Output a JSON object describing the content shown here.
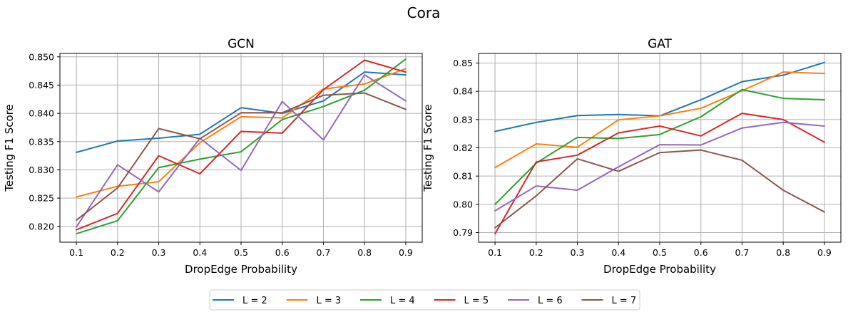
{
  "figure": {
    "suptitle": "Cora"
  },
  "chart_data": [
    {
      "type": "line",
      "title": "GCN",
      "xlabel": "DropEdge Probability",
      "ylabel": "Testing F1 Score",
      "x": [
        0.1,
        0.2,
        0.3,
        0.4,
        0.5,
        0.6,
        0.7,
        0.8,
        0.9
      ],
      "xticks": [
        "0.1",
        "0.2",
        "0.3",
        "0.4",
        "0.5",
        "0.6",
        "0.7",
        "0.8",
        "0.9"
      ],
      "xlim": [
        0.06,
        0.94
      ],
      "ylim": [
        0.8172,
        0.8506
      ],
      "yticks": [
        "0.820",
        "0.825",
        "0.830",
        "0.835",
        "0.840",
        "0.845",
        "0.850"
      ],
      "ytick_values": [
        0.82,
        0.825,
        0.83,
        0.835,
        0.84,
        0.845,
        0.85
      ],
      "grid": true,
      "series": [
        {
          "name": "L = 2",
          "color": "#1f77b4",
          "values": [
            0.8331,
            0.8351,
            0.8356,
            0.8363,
            0.841,
            0.84,
            0.8422,
            0.8473,
            0.8468
          ]
        },
        {
          "name": "L = 3",
          "color": "#ff7f0e",
          "values": [
            0.8252,
            0.8271,
            0.8279,
            0.8348,
            0.8394,
            0.8392,
            0.8443,
            0.8452,
            0.8479
          ]
        },
        {
          "name": "L = 4",
          "color": "#2ca02c",
          "values": [
            0.8187,
            0.821,
            0.8304,
            0.8319,
            0.8332,
            0.8389,
            0.8412,
            0.8441,
            0.8496
          ]
        },
        {
          "name": "L = 5",
          "color": "#d62728",
          "values": [
            0.8194,
            0.8223,
            0.8325,
            0.8293,
            0.8368,
            0.8365,
            0.8442,
            0.8494,
            0.8473
          ]
        },
        {
          "name": "L = 6",
          "color": "#9467bd",
          "values": [
            0.8199,
            0.8309,
            0.8261,
            0.8356,
            0.8299,
            0.8421,
            0.8353,
            0.8468,
            0.8422
          ]
        },
        {
          "name": "L = 7",
          "color": "#8c564b",
          "values": [
            0.8211,
            0.8268,
            0.8373,
            0.8355,
            0.8401,
            0.8401,
            0.8432,
            0.8436,
            0.8407
          ]
        }
      ]
    },
    {
      "type": "line",
      "title": "GAT",
      "xlabel": "DropEdge Probability",
      "ylabel": "Testing F1 Score",
      "x": [
        0.1,
        0.2,
        0.3,
        0.4,
        0.5,
        0.6,
        0.7,
        0.8,
        0.9
      ],
      "xticks": [
        "0.1",
        "0.2",
        "0.3",
        "0.4",
        "0.5",
        "0.6",
        "0.7",
        "0.8",
        "0.9"
      ],
      "xlim": [
        0.06,
        0.94
      ],
      "ylim": [
        0.7866,
        0.8534
      ],
      "yticks": [
        "0.79",
        "0.80",
        "0.81",
        "0.82",
        "0.83",
        "0.84",
        "0.85"
      ],
      "ytick_values": [
        0.79,
        0.8,
        0.81,
        0.82,
        0.83,
        0.84,
        0.85
      ],
      "grid": true,
      "series": [
        {
          "name": "L = 2",
          "color": "#1f77b4",
          "values": [
            0.8258,
            0.829,
            0.8314,
            0.8318,
            0.8313,
            0.837,
            0.8434,
            0.8457,
            0.8502
          ]
        },
        {
          "name": "L = 3",
          "color": "#ff7f0e",
          "values": [
            0.813,
            0.8214,
            0.8202,
            0.8299,
            0.8313,
            0.834,
            0.8402,
            0.8468,
            0.8463
          ]
        },
        {
          "name": "L = 4",
          "color": "#2ca02c",
          "values": [
            0.8,
            0.8146,
            0.8237,
            0.8233,
            0.8247,
            0.831,
            0.8406,
            0.8375,
            0.837
          ]
        },
        {
          "name": "L = 5",
          "color": "#d62728",
          "values": [
            0.7896,
            0.815,
            0.8174,
            0.8253,
            0.8277,
            0.8242,
            0.8322,
            0.83,
            0.822
          ]
        },
        {
          "name": "L = 6",
          "color": "#9467bd",
          "values": [
            0.7977,
            0.8065,
            0.805,
            0.8133,
            0.8211,
            0.821,
            0.827,
            0.829,
            0.8277
          ]
        },
        {
          "name": "L = 7",
          "color": "#8c564b",
          "values": [
            0.7917,
            0.803,
            0.8161,
            0.8117,
            0.8183,
            0.8192,
            0.8156,
            0.805,
            0.7973
          ]
        }
      ]
    }
  ],
  "legend": {
    "placement": "bottom-center",
    "entries": [
      {
        "label": "L = 2",
        "color": "#1f77b4"
      },
      {
        "label": "L = 3",
        "color": "#ff7f0e"
      },
      {
        "label": "L = 4",
        "color": "#2ca02c"
      },
      {
        "label": "L = 5",
        "color": "#d62728"
      },
      {
        "label": "L = 6",
        "color": "#9467bd"
      },
      {
        "label": "L = 7",
        "color": "#8c564b"
      }
    ]
  }
}
